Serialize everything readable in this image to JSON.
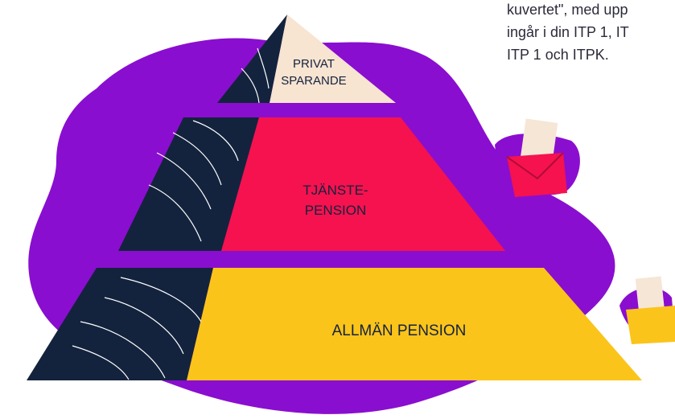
{
  "intro_text": {
    "lines": [
      "kuvertet\", med upp",
      "ingår i din ITP 1, IT",
      "ITP 1 och ITPK."
    ]
  },
  "pyramid": {
    "levels": [
      {
        "label_lines": [
          "PRIVAT",
          "SPARANDE"
        ]
      },
      {
        "label_lines": [
          "TJÄNSTE-",
          "PENSION"
        ]
      },
      {
        "label_lines": [
          "ALLMÄN PENSION"
        ]
      }
    ]
  }
}
